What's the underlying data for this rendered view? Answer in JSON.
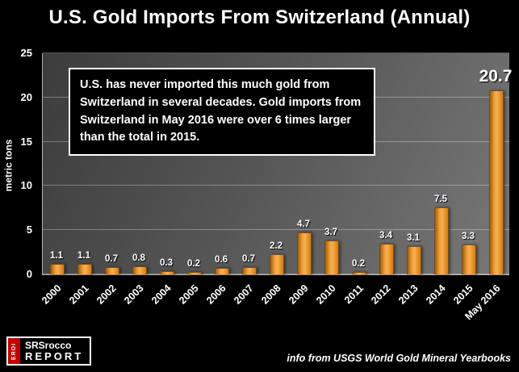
{
  "title": "U.S. Gold Imports From Switzerland (Annual)",
  "annotation": {
    "text": "U.S. has never imported this much gold from Switzerland in several decades.  Gold imports from Switzerland in May 2016 were over 6 times larger than the total in 2015."
  },
  "footer": {
    "source": "info from USGS World Gold Mineral Yearbooks",
    "logo": {
      "eroi": "EROI",
      "line1": "SRSrocco",
      "line2": "REPORT"
    }
  },
  "colors": {
    "background": "#000000",
    "bar": "#F0982E",
    "plot_gradient_start": "#3C3C3C",
    "plot_gradient_end": "#787878",
    "text": "#FFFFFF",
    "logo_red": "#C00000"
  },
  "chart_data": {
    "type": "bar",
    "title": "U.S. Gold Imports From Switzerland (Annual)",
    "xlabel": "",
    "ylabel": "metric tons",
    "ylim": [
      0,
      25
    ],
    "yticks": [
      0,
      5,
      10,
      15,
      20,
      25
    ],
    "grid": true,
    "legend": false,
    "categories": [
      "2000",
      "2001",
      "2002",
      "2003",
      "2004",
      "2005",
      "2006",
      "2007",
      "2008",
      "2009",
      "2010",
      "2011",
      "2012",
      "2013",
      "2014",
      "2015",
      "May 2016"
    ],
    "values": [
      1.1,
      1.1,
      0.7,
      0.8,
      0.3,
      0.2,
      0.6,
      0.7,
      2.2,
      4.7,
      3.7,
      0.2,
      3.4,
      3.1,
      7.5,
      3.3,
      20.7
    ],
    "highlight_category": "May 2016",
    "highlight_value_label": "20.7"
  }
}
